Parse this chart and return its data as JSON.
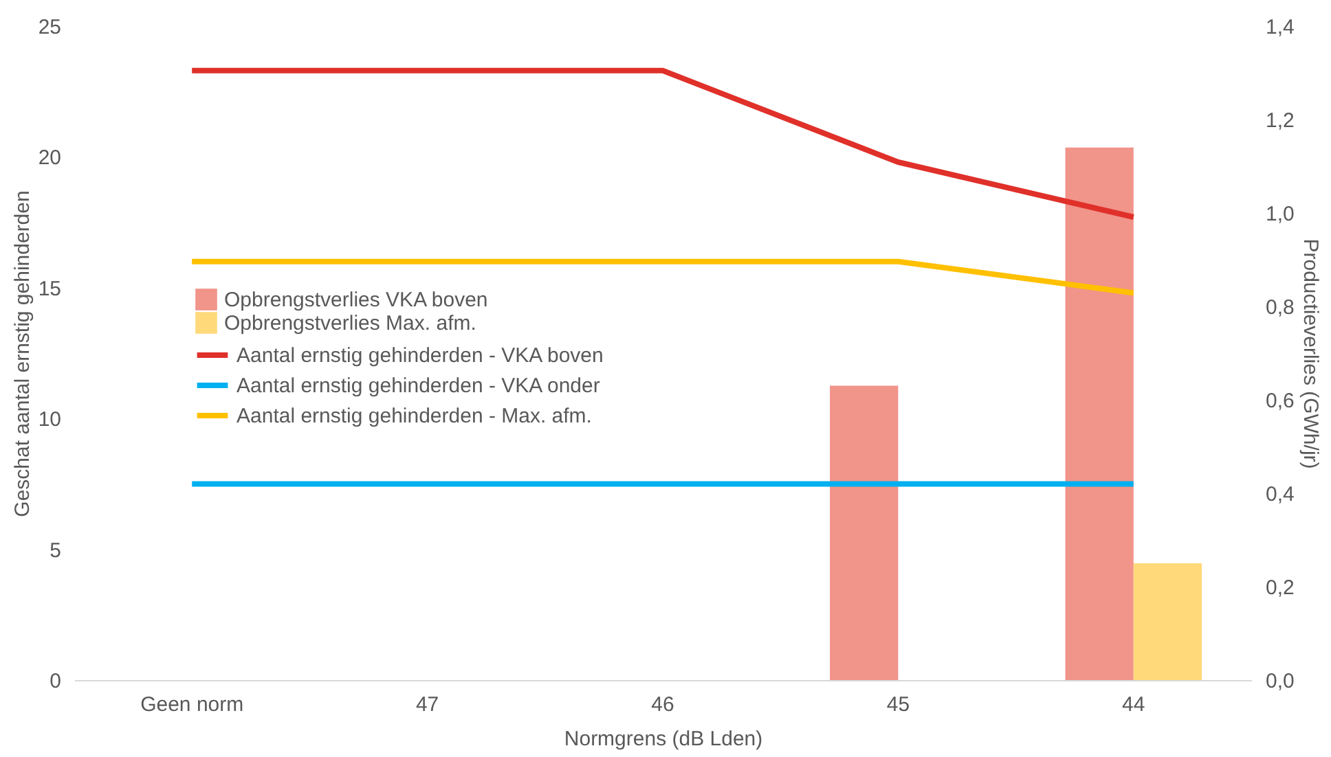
{
  "chart_data": {
    "type": "bar",
    "xlabel": "Normgrens (dB Lden)",
    "ylabel": "Geschat aantal ernstig gehinderden",
    "y2label": "Productieverlies (GWh/jr)",
    "categories": [
      "Geen norm",
      "47",
      "46",
      "45",
      "44"
    ],
    "series": [
      {
        "name": "Opbrengstverlies VKA boven",
        "type": "bar",
        "axis": "y2",
        "color": "#f1948a",
        "values": [
          null,
          null,
          null,
          0.63,
          1.14
        ]
      },
      {
        "name": "Opbrengstverlies Max. afm.",
        "type": "bar",
        "axis": "y2",
        "color": "#ffd97a",
        "values": [
          null,
          null,
          null,
          null,
          0.25
        ]
      },
      {
        "name": "Aantal ernstig gehinderden - VKA boven",
        "type": "line",
        "color": "#e0302a",
        "values": [
          23.3,
          23.3,
          23.3,
          19.8,
          17.7
        ]
      },
      {
        "name": "Aantal ernstig gehinderden - VKA onder",
        "type": "line",
        "color": "#00b0f0",
        "values": [
          7.5,
          7.5,
          7.5,
          7.5,
          7.5
        ]
      },
      {
        "name": "Aantal ernstig gehinderden - Max. afm.",
        "type": "line",
        "color": "#ffc000",
        "values": [
          16.0,
          16.0,
          16.0,
          16.0,
          14.8
        ]
      }
    ],
    "ylim": [
      0,
      25
    ],
    "yticks": [
      0,
      5,
      10,
      15,
      20,
      25
    ],
    "y2lim": [
      0,
      1.4
    ],
    "y2ticks": [
      {
        "value": 0,
        "label": "0,0"
      },
      {
        "value": 0.2,
        "label": "0,2"
      },
      {
        "value": 0.4,
        "label": "0,4"
      },
      {
        "value": 0.6,
        "label": "0,6"
      },
      {
        "value": 0.8,
        "label": "0,8"
      },
      {
        "value": 1.0,
        "label": "1,0"
      },
      {
        "value": 1.2,
        "label": "1,2"
      },
      {
        "value": 1.4,
        "label": "1,4"
      }
    ],
    "grid": false,
    "legend": "left",
    "line_style": "solid",
    "marker": "none"
  }
}
